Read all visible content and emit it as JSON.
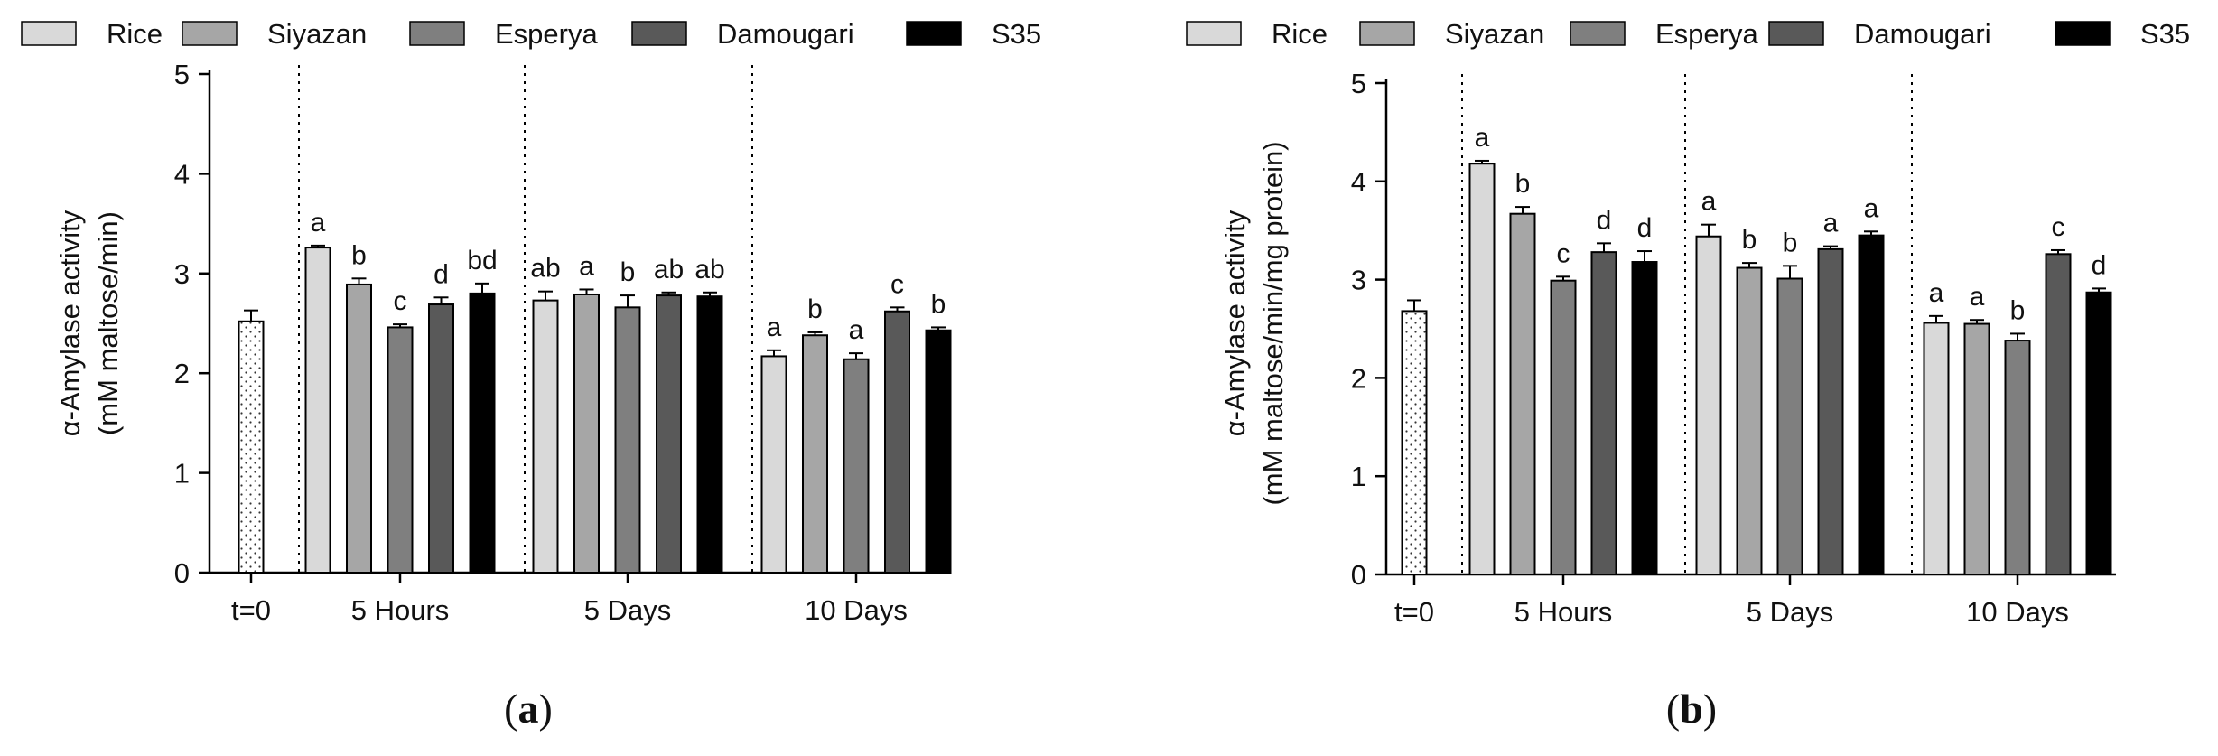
{
  "palette": {
    "Rice": "#d9d9d9",
    "Siyazan": "#a6a6a6",
    "Esperya": "#7f7f7f",
    "Damougari": "#595959",
    "S35": "#000000"
  },
  "chart_data": [
    {
      "type": "bar",
      "panel_label": "a",
      "ylabel_lines": [
        "α-Amylase activity",
        "(mM  maltose/min)"
      ],
      "ylim": [
        0,
        5
      ],
      "yticks": [
        "0",
        "1",
        "2",
        "3",
        "4",
        "5"
      ],
      "legend": [
        "Rice",
        "Siyazan",
        "Esperya",
        "Damougari",
        "S35"
      ],
      "baseline": {
        "label": "t=0",
        "value": 2.52,
        "error": 0.11
      },
      "groups": [
        {
          "label": "5 Hours",
          "bars": [
            {
              "series": "Rice",
              "value": 3.26,
              "error": 0.02,
              "letter": "a"
            },
            {
              "series": "Siyazan",
              "value": 2.89,
              "error": 0.06,
              "letter": "b"
            },
            {
              "series": "Esperya",
              "value": 2.46,
              "error": 0.03,
              "letter": "c"
            },
            {
              "series": "Damougari",
              "value": 2.69,
              "error": 0.07,
              "letter": "d"
            },
            {
              "series": "S35",
              "value": 2.8,
              "error": 0.1,
              "letter": "bd"
            }
          ]
        },
        {
          "label": "5 Days",
          "bars": [
            {
              "series": "Rice",
              "value": 2.73,
              "error": 0.09,
              "letter": "ab"
            },
            {
              "series": "Siyazan",
              "value": 2.79,
              "error": 0.05,
              "letter": "a"
            },
            {
              "series": "Esperya",
              "value": 2.66,
              "error": 0.12,
              "letter": "b"
            },
            {
              "series": "Damougari",
              "value": 2.78,
              "error": 0.03,
              "letter": "ab"
            },
            {
              "series": "S35",
              "value": 2.77,
              "error": 0.04,
              "letter": "ab"
            }
          ]
        },
        {
          "label": "10 Days",
          "bars": [
            {
              "series": "Rice",
              "value": 2.17,
              "error": 0.06,
              "letter": "a"
            },
            {
              "series": "Siyazan",
              "value": 2.38,
              "error": 0.03,
              "letter": "b"
            },
            {
              "series": "Esperya",
              "value": 2.14,
              "error": 0.06,
              "letter": "a"
            },
            {
              "series": "Damougari",
              "value": 2.62,
              "error": 0.04,
              "letter": "c"
            },
            {
              "series": "S35",
              "value": 2.43,
              "error": 0.03,
              "letter": "b"
            }
          ]
        }
      ]
    },
    {
      "type": "bar",
      "panel_label": "b",
      "ylabel_lines": [
        "α-Amylase activity",
        "(mM  maltose/min/mg protein)"
      ],
      "ylim": [
        0,
        5
      ],
      "yticks": [
        "0",
        "1",
        "2",
        "3",
        "4",
        "5"
      ],
      "legend": [
        "Rice",
        "Siyazan",
        "Esperya",
        "Damougari",
        "S35"
      ],
      "baseline": {
        "label": "t=0",
        "value": 2.68,
        "error": 0.11
      },
      "groups": [
        {
          "label": "5 Hours",
          "bars": [
            {
              "series": "Rice",
              "value": 4.18,
              "error": 0.03,
              "letter": "a"
            },
            {
              "series": "Siyazan",
              "value": 3.67,
              "error": 0.07,
              "letter": "b"
            },
            {
              "series": "Esperya",
              "value": 2.99,
              "error": 0.04,
              "letter": "c"
            },
            {
              "series": "Damougari",
              "value": 3.28,
              "error": 0.09,
              "letter": "d"
            },
            {
              "series": "S35",
              "value": 3.18,
              "error": 0.11,
              "letter": "d"
            }
          ]
        },
        {
          "label": "5 Days",
          "bars": [
            {
              "series": "Rice",
              "value": 3.44,
              "error": 0.12,
              "letter": "a"
            },
            {
              "series": "Siyazan",
              "value": 3.12,
              "error": 0.05,
              "letter": "b"
            },
            {
              "series": "Esperya",
              "value": 3.01,
              "error": 0.13,
              "letter": "b"
            },
            {
              "series": "Damougari",
              "value": 3.31,
              "error": 0.03,
              "letter": "a"
            },
            {
              "series": "S35",
              "value": 3.45,
              "error": 0.04,
              "letter": "a"
            }
          ]
        },
        {
          "label": "10 Days",
          "bars": [
            {
              "series": "Rice",
              "value": 2.56,
              "error": 0.07,
              "letter": "a"
            },
            {
              "series": "Siyazan",
              "value": 2.55,
              "error": 0.04,
              "letter": "a"
            },
            {
              "series": "Esperya",
              "value": 2.38,
              "error": 0.07,
              "letter": "b"
            },
            {
              "series": "Damougari",
              "value": 3.26,
              "error": 0.04,
              "letter": "c"
            },
            {
              "series": "S35",
              "value": 2.87,
              "error": 0.04,
              "letter": "d"
            }
          ]
        }
      ]
    }
  ]
}
